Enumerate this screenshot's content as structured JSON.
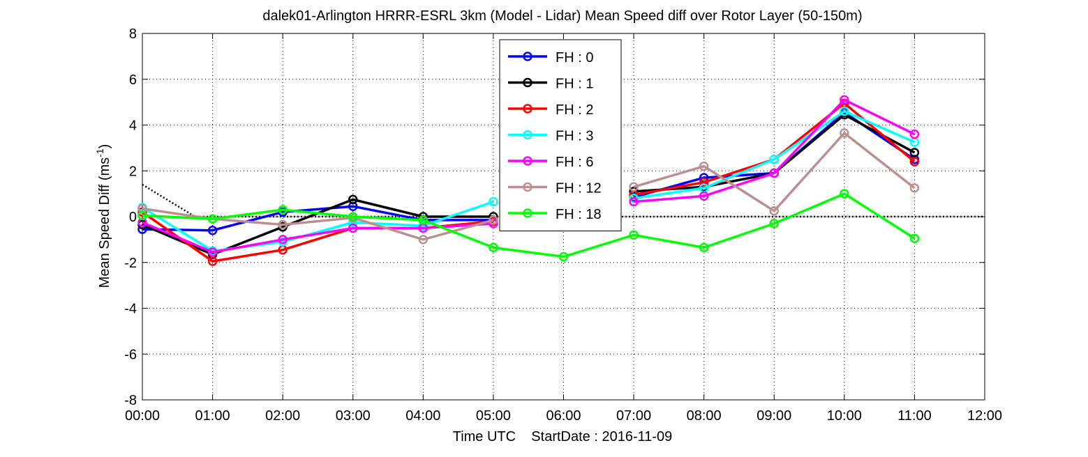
{
  "chart_data": {
    "type": "line",
    "title": "dalek01-Arlington HRRR-ESRL 3km (Model - Lidar) Mean Speed diff over Rotor Layer (50-150m)",
    "xlabel": "Time UTC    StartDate : 2016-11-09",
    "ylabel": {
      "main": "Mean Speed Diff (ms",
      "superscript": "-1",
      "close": ")"
    },
    "x_tick_labels": [
      "00:00",
      "01:00",
      "02:00",
      "03:00",
      "04:00",
      "05:00",
      "06:00",
      "07:00",
      "08:00",
      "09:00",
      "10:00",
      "11:00",
      "12:00"
    ],
    "xlim": [
      0,
      12
    ],
    "ylim": [
      -8,
      8
    ],
    "y_ticks": [
      -8,
      -6,
      -4,
      -2,
      0,
      2,
      4,
      6,
      8
    ],
    "grid": true,
    "legend_position": "top-center",
    "zero_reference_line": {
      "style": "dotted",
      "color": "#000000",
      "x": [
        0,
        0.75,
        12
      ],
      "y": [
        1.4,
        0,
        0
      ]
    },
    "series": [
      {
        "name": "FH : 0",
        "color": "#0000ff",
        "x": [
          0,
          1,
          2,
          3,
          4,
          5,
          6,
          7,
          8,
          9,
          10,
          11
        ],
        "y": [
          -0.55,
          -0.6,
          0.2,
          0.45,
          -0.15,
          -0.15,
          null,
          0.85,
          1.7,
          1.9,
          4.55,
          2.5
        ]
      },
      {
        "name": "FH : 1",
        "color": "#000000",
        "x": [
          0,
          1,
          2,
          3,
          4,
          5,
          6,
          7,
          8,
          9,
          10,
          11
        ],
        "y": [
          -0.35,
          -1.65,
          -0.45,
          0.75,
          0.0,
          0.0,
          null,
          1.1,
          1.3,
          1.9,
          4.45,
          2.8
        ]
      },
      {
        "name": "FH : 2",
        "color": "#ff0000",
        "x": [
          0,
          1,
          2,
          3,
          4,
          5,
          6,
          7,
          8,
          9,
          10,
          11
        ],
        "y": [
          0.2,
          -1.95,
          -1.45,
          -0.5,
          -0.5,
          -0.2,
          null,
          0.95,
          1.5,
          2.5,
          4.95,
          2.4
        ]
      },
      {
        "name": "FH : 3",
        "color": "#00ffff",
        "x": [
          0,
          1,
          2,
          3,
          4,
          5,
          6,
          7,
          8,
          9,
          10,
          11
        ],
        "y": [
          0.4,
          -1.5,
          -1.1,
          -0.25,
          -0.4,
          0.65,
          null,
          0.8,
          1.25,
          2.5,
          4.6,
          3.25
        ]
      },
      {
        "name": "FH : 6",
        "color": "#ff00ff",
        "x": [
          0,
          1,
          2,
          3,
          4,
          5,
          6,
          7,
          8,
          9,
          10,
          11
        ],
        "y": [
          -0.25,
          -1.55,
          -1.0,
          -0.5,
          -0.5,
          -0.3,
          null,
          0.65,
          0.9,
          1.9,
          5.1,
          3.6
        ]
      },
      {
        "name": "FH : 12",
        "color": "#bc8f8f",
        "x": [
          0,
          1,
          2,
          3,
          4,
          5,
          6,
          7,
          8,
          9,
          10,
          11
        ],
        "y": [
          0.35,
          -0.1,
          -0.35,
          -0.05,
          -1.0,
          -0.15,
          null,
          1.3,
          2.2,
          0.25,
          3.65,
          1.25
        ]
      },
      {
        "name": "FH : 18",
        "color": "#00ff00",
        "x": [
          0,
          1,
          2,
          3,
          4,
          5,
          6,
          7,
          8,
          9,
          10,
          11
        ],
        "y": [
          0.05,
          -0.1,
          0.3,
          0.0,
          -0.15,
          -1.35,
          -1.75,
          -0.8,
          -1.35,
          -0.3,
          1.0,
          -0.95
        ]
      }
    ]
  }
}
